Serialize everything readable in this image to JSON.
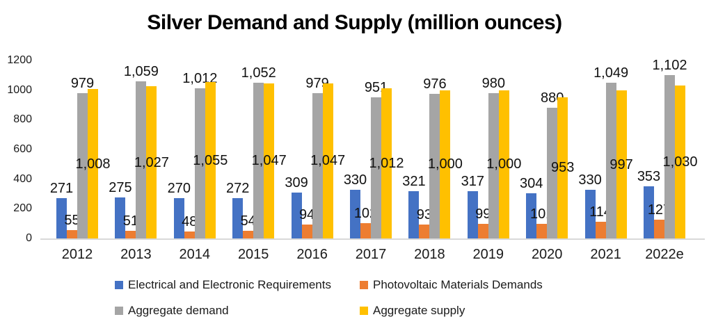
{
  "chart_data": {
    "type": "bar",
    "title": "Silver Demand and Supply (million ounces)",
    "categories": [
      "2012",
      "2013",
      "2014",
      "2015",
      "2016",
      "2017",
      "2018",
      "2019",
      "2020",
      "2021",
      "2022e"
    ],
    "series": [
      {
        "name": "Electrical and Electronic Requirements",
        "color": "#4472C4",
        "label_position": "outside-end",
        "values": [
          271,
          275,
          270,
          272,
          309,
          330,
          321,
          317,
          304,
          330,
          353
        ]
      },
      {
        "name": "Photovoltaic Materials Demands",
        "color": "#ED7D31",
        "label_position": "outside-end",
        "values": [
          55,
          51,
          48,
          54,
          94,
          102,
          93,
          99,
          101,
          114,
          127
        ]
      },
      {
        "name": "Aggregate demand",
        "color": "#A5A5A5",
        "label_position": "outside-end",
        "texture": "dotted",
        "values": [
          979,
          1059,
          1012,
          1052,
          979,
          951,
          976,
          980,
          880,
          1049,
          1102
        ]
      },
      {
        "name": "Aggregate supply",
        "color": "#FFC000",
        "label_position": "inside-center",
        "values": [
          1008,
          1027,
          1055,
          1047,
          1047,
          1012,
          1000,
          1000,
          953,
          997,
          1030
        ]
      }
    ],
    "y_axis": {
      "min": 0,
      "max": 1200,
      "ticks": [
        0,
        200,
        400,
        600,
        800,
        1000,
        1200
      ]
    },
    "gridlines": false,
    "legend_position": "bottom",
    "axis_line_color": "#D9D9D9",
    "data_labels_shown": true
  }
}
